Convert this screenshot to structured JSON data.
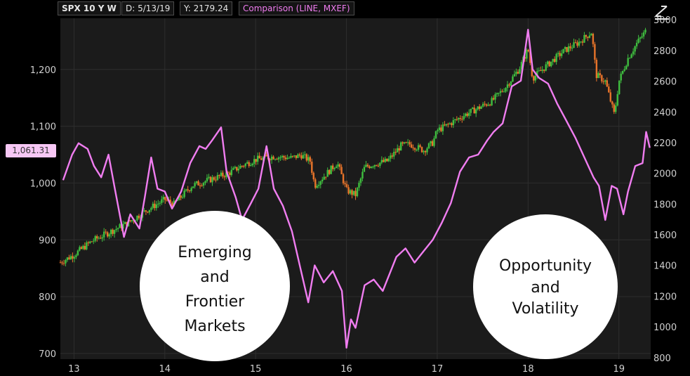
{
  "header": {
    "symbol": "SPX 10 Y W",
    "date_label": "D: 5/13/19",
    "value_label": "Y: 2179.24",
    "comparison_label": "Comparison (LINE, MXEF)"
  },
  "current_price_tag": "1,061.31",
  "icons": {
    "toolbar": "expand-diagonal-icon"
  },
  "colors": {
    "background": "#000000",
    "plot_background": "#1b1b1b",
    "grid": "#2e2e2e",
    "up_candle": "#3fbf3f",
    "down_candle": "#e8742a",
    "comparison_line": "#f07df0",
    "bubble": "#ffffff"
  },
  "annotations": [
    {
      "lines": [
        "Emerging",
        "and",
        "Frontier",
        "Markets"
      ]
    },
    {
      "lines": [
        "Opportunity",
        "and",
        "Volatility"
      ]
    }
  ],
  "chart_data": {
    "type": "line",
    "grid": true,
    "x_ticks": [
      "13",
      "14",
      "15",
      "16",
      "17",
      "18",
      "19"
    ],
    "x_range": [
      12.85,
      19.35
    ],
    "left_axis": {
      "ticks": [
        700,
        800,
        900,
        "1,000",
        "1,100",
        "1,200"
      ],
      "range": [
        690,
        1290
      ]
    },
    "right_axis": {
      "ticks": [
        800,
        1000,
        1200,
        1400,
        1600,
        1800,
        2000,
        2200,
        2400,
        2600,
        2800,
        3000
      ],
      "range": [
        790,
        3010
      ]
    },
    "series": [
      {
        "style": "candlestick",
        "axis": "right",
        "points": [
          [
            12.85,
            1420
          ],
          [
            13.0,
            1470
          ],
          [
            13.2,
            1560
          ],
          [
            13.4,
            1620
          ],
          [
            13.6,
            1680
          ],
          [
            13.8,
            1760
          ],
          [
            14.0,
            1830
          ],
          [
            14.1,
            1800
          ],
          [
            14.3,
            1920
          ],
          [
            14.5,
            1960
          ],
          [
            14.7,
            2000
          ],
          [
            14.85,
            2050
          ],
          [
            15.0,
            2090
          ],
          [
            15.2,
            2110
          ],
          [
            15.4,
            2100
          ],
          [
            15.5,
            2120
          ],
          [
            15.6,
            2080
          ],
          [
            15.65,
            1920
          ],
          [
            15.75,
            1980
          ],
          [
            15.9,
            2070
          ],
          [
            16.0,
            1890
          ],
          [
            16.1,
            1860
          ],
          [
            16.2,
            2040
          ],
          [
            16.3,
            2060
          ],
          [
            16.45,
            2080
          ],
          [
            16.6,
            2180
          ],
          [
            16.7,
            2190
          ],
          [
            16.85,
            2150
          ],
          [
            16.95,
            2200
          ],
          [
            17.0,
            2280
          ],
          [
            17.1,
            2310
          ],
          [
            17.3,
            2380
          ],
          [
            17.5,
            2440
          ],
          [
            17.6,
            2470
          ],
          [
            17.75,
            2560
          ],
          [
            17.9,
            2680
          ],
          [
            18.0,
            2810
          ],
          [
            18.05,
            2620
          ],
          [
            18.2,
            2700
          ],
          [
            18.4,
            2800
          ],
          [
            18.55,
            2850
          ],
          [
            18.7,
            2920
          ],
          [
            18.75,
            2640
          ],
          [
            18.85,
            2600
          ],
          [
            18.95,
            2380
          ],
          [
            19.0,
            2600
          ],
          [
            19.1,
            2750
          ],
          [
            19.2,
            2850
          ],
          [
            19.3,
            2930
          ]
        ]
      },
      {
        "name": "MXEF",
        "style": "line",
        "axis": "left",
        "points": [
          [
            12.88,
            1005
          ],
          [
            12.98,
            1050
          ],
          [
            13.05,
            1070
          ],
          [
            13.15,
            1060
          ],
          [
            13.22,
            1030
          ],
          [
            13.3,
            1010
          ],
          [
            13.38,
            1050
          ],
          [
            13.45,
            990
          ],
          [
            13.55,
            905
          ],
          [
            13.62,
            945
          ],
          [
            13.72,
            920
          ],
          [
            13.78,
            975
          ],
          [
            13.85,
            1045
          ],
          [
            13.92,
            990
          ],
          [
            14.0,
            985
          ],
          [
            14.08,
            955
          ],
          [
            14.18,
            985
          ],
          [
            14.28,
            1035
          ],
          [
            14.38,
            1065
          ],
          [
            14.45,
            1060
          ],
          [
            14.52,
            1075
          ],
          [
            14.62,
            1098
          ],
          [
            14.68,
            1020
          ],
          [
            14.78,
            975
          ],
          [
            14.85,
            935
          ],
          [
            14.95,
            965
          ],
          [
            15.03,
            990
          ],
          [
            15.12,
            1065
          ],
          [
            15.2,
            990
          ],
          [
            15.3,
            960
          ],
          [
            15.4,
            915
          ],
          [
            15.5,
            845
          ],
          [
            15.58,
            790
          ],
          [
            15.65,
            855
          ],
          [
            15.75,
            825
          ],
          [
            15.85,
            845
          ],
          [
            15.95,
            810
          ],
          [
            16.0,
            710
          ],
          [
            16.05,
            760
          ],
          [
            16.1,
            745
          ],
          [
            16.2,
            820
          ],
          [
            16.3,
            830
          ],
          [
            16.4,
            810
          ],
          [
            16.55,
            870
          ],
          [
            16.65,
            885
          ],
          [
            16.75,
            860
          ],
          [
            16.85,
            880
          ],
          [
            16.95,
            900
          ],
          [
            17.05,
            930
          ],
          [
            17.15,
            965
          ],
          [
            17.25,
            1020
          ],
          [
            17.35,
            1045
          ],
          [
            17.45,
            1050
          ],
          [
            17.55,
            1075
          ],
          [
            17.62,
            1090
          ],
          [
            17.72,
            1105
          ],
          [
            17.82,
            1170
          ],
          [
            17.92,
            1180
          ],
          [
            18.0,
            1270
          ],
          [
            18.05,
            1200
          ],
          [
            18.12,
            1185
          ],
          [
            18.22,
            1175
          ],
          [
            18.32,
            1140
          ],
          [
            18.42,
            1110
          ],
          [
            18.52,
            1080
          ],
          [
            18.62,
            1045
          ],
          [
            18.72,
            1010
          ],
          [
            18.78,
            995
          ],
          [
            18.85,
            935
          ],
          [
            18.92,
            995
          ],
          [
            18.98,
            990
          ],
          [
            19.05,
            945
          ],
          [
            19.1,
            985
          ],
          [
            19.18,
            1030
          ],
          [
            19.26,
            1035
          ],
          [
            19.3,
            1090
          ],
          [
            19.34,
            1062
          ]
        ]
      }
    ]
  }
}
